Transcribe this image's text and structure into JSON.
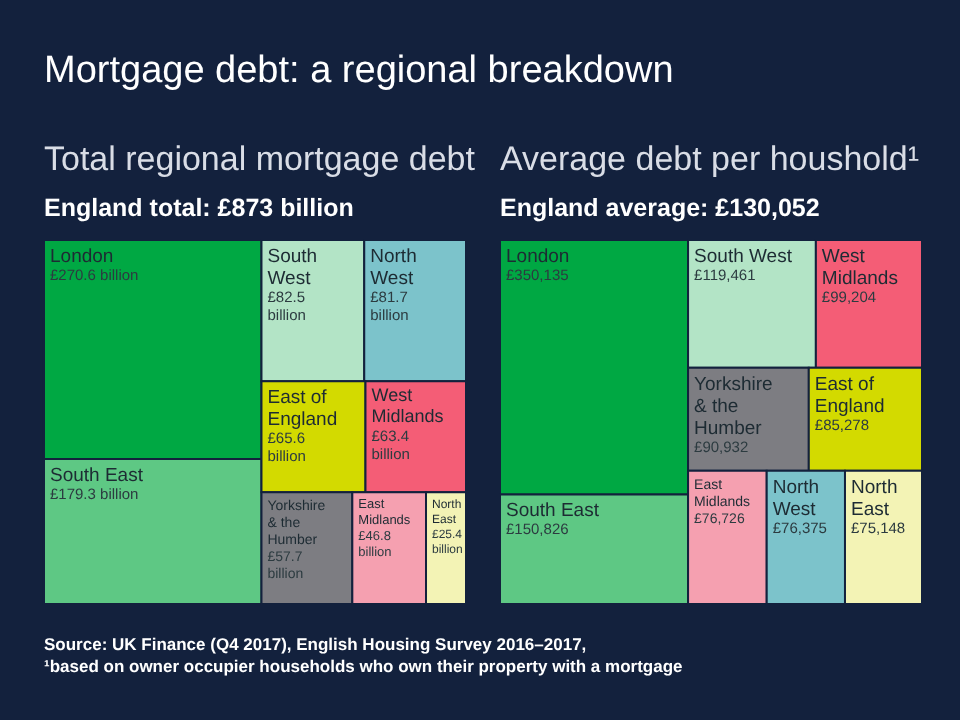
{
  "chart_data": [
    {
      "type": "other",
      "title": "Total regional mortgage debt",
      "subtitle": "England total: £873 billion",
      "annotations": [
        "Mortgage debt: a regional breakdown",
        "Source: UK Finance (Q4 2017), English Housing Survey 2016–2017,",
        "¹based on owner occupier households who own their property with a mortgage"
      ],
      "categories": [
        "London",
        "South East",
        "South West",
        "North West",
        "East of England",
        "West Midlands",
        "Yorkshire & the Humber",
        "East Midlands",
        "North East"
      ],
      "values": [
        270.6,
        179.3,
        82.5,
        81.7,
        65.6,
        63.4,
        57.7,
        46.8,
        25.4
      ],
      "value_labels": [
        "£270.6 billion",
        "£179.3 billion",
        "£82.5 billion",
        "£81.7 billion",
        "£65.6 billion",
        "£63.4 billion",
        "£57.7 billion",
        "£46.8 billion",
        "£25.4 billion"
      ],
      "colors": [
        "#00a843",
        "#5ec884",
        "#b3e4c6",
        "#7cc3cb",
        "#d3da00",
        "#f45d76",
        "#7d7d82",
        "#f5a0b0",
        "#f3f3b5"
      ]
    },
    {
      "type": "other",
      "title": "Average debt per houshold¹",
      "subtitle": "England average: £130,052",
      "categories": [
        "London",
        "South East",
        "South West",
        "West Midlands",
        "Yorkshire & the Humber",
        "East of England",
        "East Midlands",
        "North West",
        "North East"
      ],
      "values": [
        350135,
        150826,
        119461,
        99204,
        90932,
        85278,
        76726,
        76375,
        75148
      ],
      "value_labels": [
        "£350,135",
        "£150,826",
        "£119,461",
        "£99,204",
        "£90,932",
        "£85,278",
        "£76,726",
        "£76,375",
        "£75,148"
      ],
      "colors": [
        "#00a843",
        "#5ec884",
        "#b3e4c6",
        "#f45d76",
        "#7d7d82",
        "#d3da00",
        "#f5a0b0",
        "#7cc3cb",
        "#f3f3b5"
      ]
    }
  ]
}
